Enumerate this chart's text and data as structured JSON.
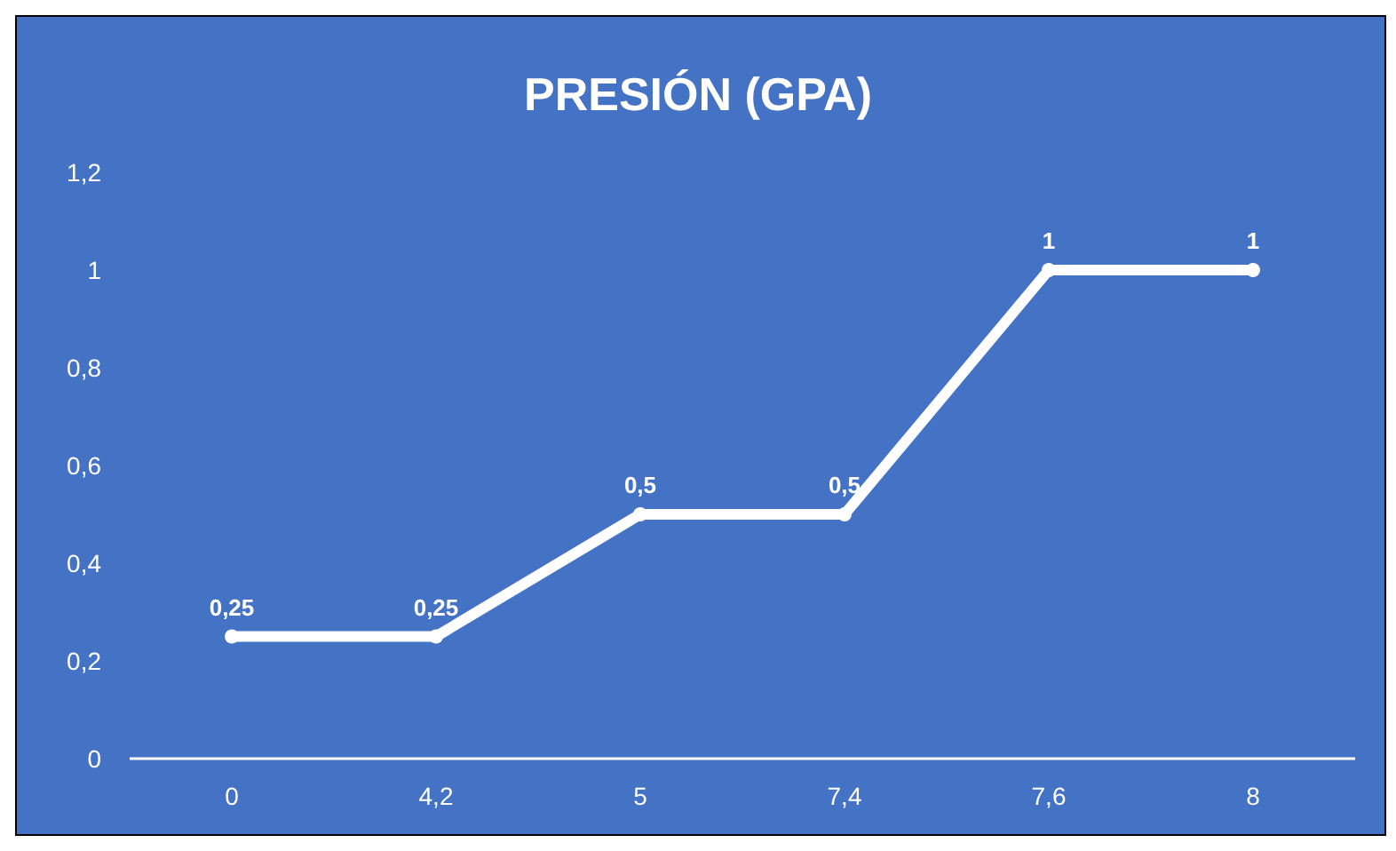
{
  "chart_data": {
    "type": "line",
    "title": "PRESIÓN (GPA)",
    "categories": [
      "0",
      "4,2",
      "5",
      "7,4",
      "7,6",
      "8"
    ],
    "series": [
      {
        "color": "#ffffff",
        "values": [
          0.25,
          0.25,
          0.5,
          0.5,
          1,
          1
        ],
        "value_labels": [
          "0,25",
          "0,25",
          "0,5",
          "0,5",
          "1",
          "1"
        ]
      }
    ],
    "ylim": [
      0,
      1.2
    ],
    "yticks": [
      0,
      {
        "value": 0.2,
        "label": "0,2"
      },
      {
        "value": 0.4,
        "label": "0,4"
      },
      {
        "value": 0.6,
        "label": "0,6"
      },
      {
        "value": 0.8,
        "label": "0,8"
      },
      1,
      {
        "value": 1.2,
        "label": "1,2"
      }
    ],
    "grid": false,
    "marker": "circle",
    "line_style": "solid"
  }
}
